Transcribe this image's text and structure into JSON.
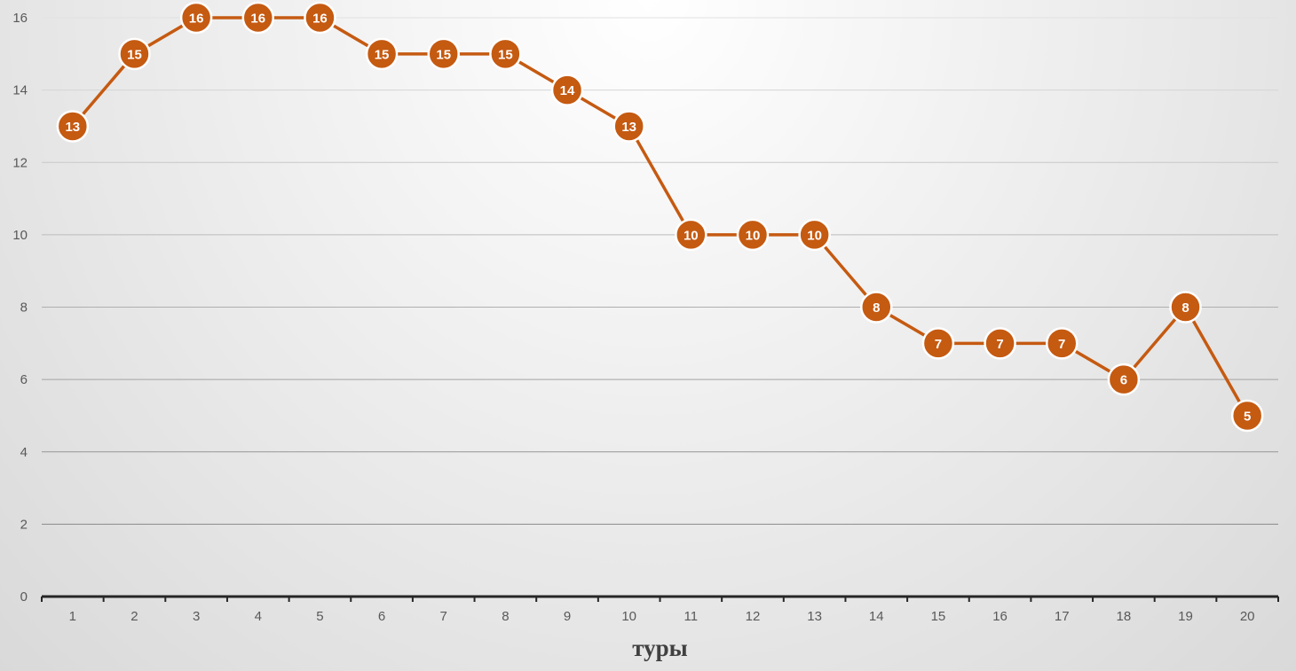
{
  "chart_data": {
    "type": "line",
    "title": "",
    "xlabel": "туры",
    "ylabel": "",
    "categories": [
      "1",
      "2",
      "3",
      "4",
      "5",
      "6",
      "7",
      "8",
      "9",
      "10",
      "11",
      "12",
      "13",
      "14",
      "15",
      "16",
      "17",
      "18",
      "19",
      "20"
    ],
    "series": [
      {
        "values": [
          13,
          15,
          16,
          16,
          16,
          15,
          15,
          15,
          14,
          13,
          10,
          10,
          10,
          8,
          7,
          7,
          7,
          6,
          8,
          5
        ],
        "color": "#c55a11",
        "data_labels": true
      }
    ],
    "y_ticks": [
      0,
      2,
      4,
      6,
      8,
      10,
      12,
      14,
      16
    ],
    "ylim": [
      0,
      16
    ],
    "grid": true,
    "legend": "none"
  }
}
